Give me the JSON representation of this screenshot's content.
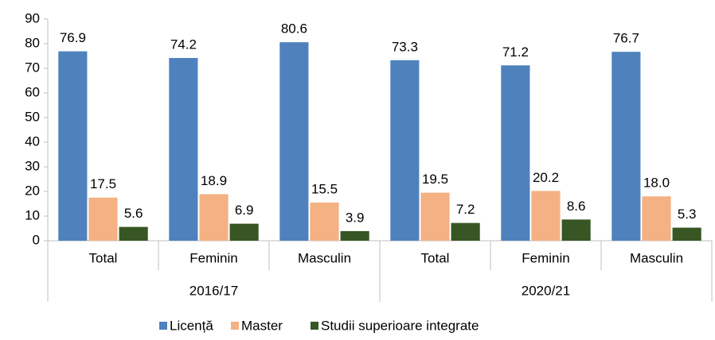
{
  "chart_data": {
    "type": "bar",
    "categories": [
      "Total",
      "Feminin",
      "Masculin",
      "Total",
      "Feminin",
      "Masculin"
    ],
    "groups": [
      "2016/17",
      "2020/21"
    ],
    "series": [
      {
        "name": "Licență",
        "color": "#4f81bd",
        "values": [
          76.9,
          74.2,
          80.6,
          73.3,
          71.2,
          76.7
        ]
      },
      {
        "name": "Master",
        "color": "#f4b183",
        "values": [
          17.5,
          18.9,
          15.5,
          19.5,
          20.2,
          18
        ],
        "value_labels": [
          "17.5",
          "18.9",
          "15.5",
          "19.5",
          "20.2",
          "18.0"
        ]
      },
      {
        "name": "Studii superioare integrate",
        "color": "#375623",
        "values": [
          5.6,
          6.9,
          3.9,
          7.2,
          8.6,
          5.3
        ]
      }
    ],
    "ylim": [
      0,
      90
    ],
    "yticks": [
      0,
      10,
      20,
      30,
      40,
      50,
      60,
      70,
      80,
      90
    ],
    "grid": false,
    "legend": "bottom"
  }
}
